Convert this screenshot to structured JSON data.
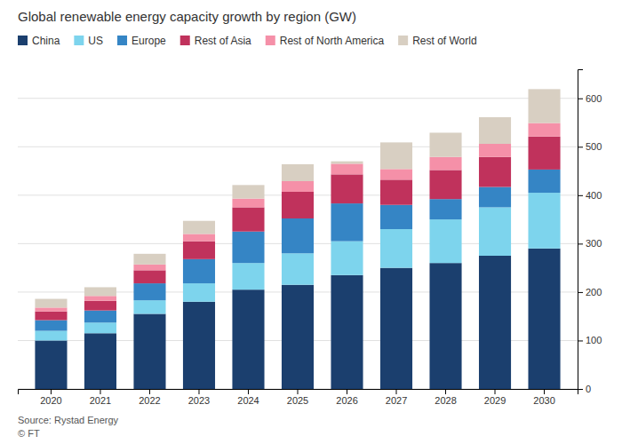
{
  "chart_data": {
    "type": "bar",
    "stacked": true,
    "title": "Global renewable energy capacity growth by region (GW)",
    "categories": [
      "2020",
      "2021",
      "2022",
      "2023",
      "2024",
      "2025",
      "2026",
      "2027",
      "2028",
      "2029",
      "2030"
    ],
    "series": [
      {
        "name": "China",
        "color": "#1b3f6e",
        "values": [
          100,
          115,
          155,
          180,
          205,
          215,
          235,
          250,
          260,
          275,
          290
        ]
      },
      {
        "name": "US",
        "color": "#7dd4ed",
        "values": [
          20,
          22,
          28,
          38,
          55,
          65,
          70,
          80,
          90,
          100,
          115
        ]
      },
      {
        "name": "Europe",
        "color": "#3585c5",
        "values": [
          22,
          25,
          35,
          50,
          65,
          72,
          78,
          50,
          42,
          42,
          48
        ]
      },
      {
        "name": "Rest of Asia",
        "color": "#c0325c",
        "values": [
          18,
          20,
          27,
          37,
          50,
          55,
          60,
          52,
          60,
          62,
          68
        ]
      },
      {
        "name": "Rest of North America",
        "color": "#f590a8",
        "values": [
          8,
          10,
          12,
          15,
          18,
          22,
          22,
          22,
          27,
          27,
          28
        ]
      },
      {
        "name": "Rest of World",
        "color": "#d8cfc2",
        "values": [
          18,
          18,
          22,
          27,
          28,
          35,
          5,
          55,
          50,
          55,
          70
        ]
      }
    ],
    "ylim": [
      0,
      660
    ],
    "yticks": [
      0,
      100,
      200,
      300,
      400,
      500,
      600
    ],
    "grid": true,
    "legend": "top-left",
    "annotations": [
      "Source: Rystad Energy",
      "© FT"
    ]
  }
}
